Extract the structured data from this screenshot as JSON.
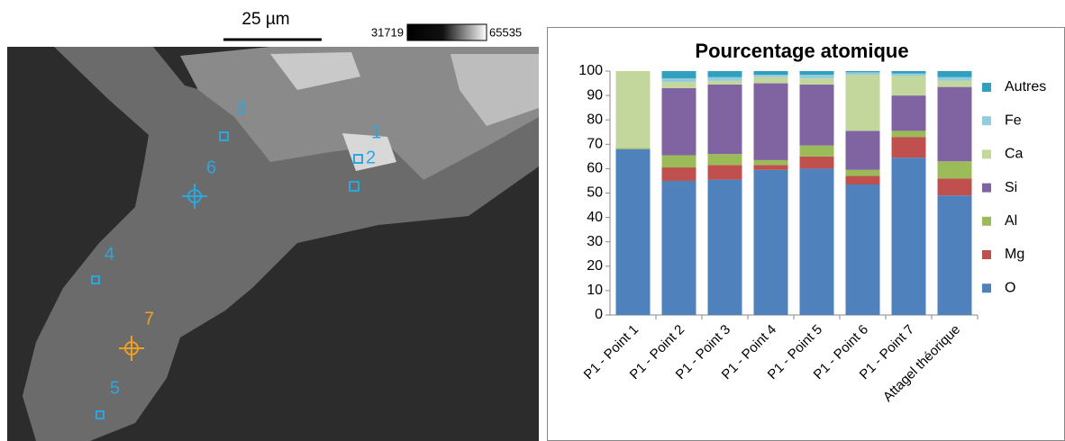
{
  "image": {
    "scale_label": "25 µm",
    "gray_min": "31719",
    "gray_max": "65535",
    "points": [
      "1",
      "2",
      "3",
      "4",
      "5",
      "6",
      "7"
    ]
  },
  "chart_data": {
    "type": "stacked_bar",
    "title": "Pourcentage atomique",
    "categories": [
      "P1 - Point 1",
      "P1 - Point 2",
      "P1 - Point 3",
      "P1 - Point 4",
      "P1 - Point 5",
      "P1 - Point 6",
      "P1 - Point 7",
      "Attagel théorique"
    ],
    "series": [
      {
        "name": "O",
        "color": "#4f81bd",
        "values": [
          68,
          55,
          55.5,
          59.5,
          60,
          53.5,
          64.5,
          49
        ]
      },
      {
        "name": "Mg",
        "color": "#c0504d",
        "values": [
          0,
          5.5,
          6,
          2,
          5,
          3.5,
          8.5,
          7
        ]
      },
      {
        "name": "Al",
        "color": "#9bbb59",
        "values": [
          0.5,
          5,
          4.5,
          2,
          4.5,
          2.5,
          2.5,
          7
        ]
      },
      {
        "name": "Si",
        "color": "#8064a2",
        "values": [
          0,
          27.5,
          28.5,
          31.5,
          25,
          16,
          14.5,
          30.5
        ]
      },
      {
        "name": "Ca",
        "color": "#c3d69b",
        "values": [
          31.5,
          2.5,
          1.5,
          2.5,
          2.5,
          23,
          8,
          2.5
        ]
      },
      {
        "name": "Fe",
        "color": "#93cddd",
        "values": [
          0,
          1.5,
          1.5,
          1,
          1.5,
          1,
          1,
          1.5
        ]
      },
      {
        "name": "Autres",
        "color": "#31a0be",
        "values": [
          0,
          3,
          2.5,
          1.5,
          1.5,
          0.5,
          1,
          2.5
        ]
      }
    ],
    "ylim": [
      0,
      100
    ],
    "yticks": [
      0,
      10,
      20,
      30,
      40,
      50,
      60,
      70,
      80,
      90,
      100
    ],
    "grid": false,
    "legend": "right"
  }
}
